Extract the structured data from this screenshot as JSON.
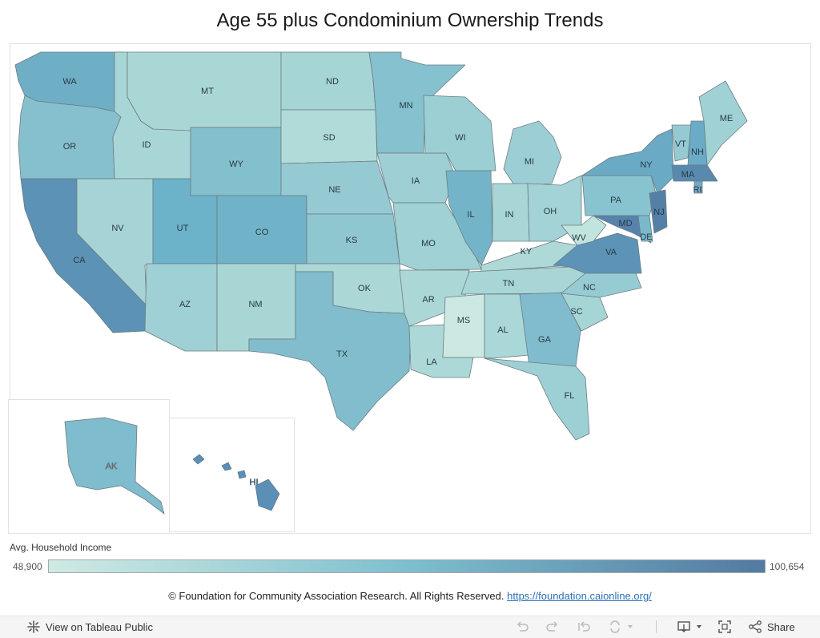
{
  "title": "Age 55 plus Condominium Ownership Trends",
  "legend": {
    "title": "Avg. Household Income",
    "min_label": "48,900",
    "max_label": "100,654",
    "color_low": "#cfeae3",
    "color_mid": "#7dbfcf",
    "color_high": "#537aa1"
  },
  "states": [
    {
      "abbr": "WA",
      "color": "#6eafc6"
    },
    {
      "abbr": "OR",
      "color": "#86c0cf"
    },
    {
      "abbr": "CA",
      "color": "#5b92b5"
    },
    {
      "abbr": "ID",
      "color": "#a8d6d6"
    },
    {
      "abbr": "NV",
      "color": "#a6d4d6"
    },
    {
      "abbr": "MT",
      "color": "#a9d7d6"
    },
    {
      "abbr": "WY",
      "color": "#83c0ce"
    },
    {
      "abbr": "UT",
      "color": "#6cb2c9"
    },
    {
      "abbr": "AZ",
      "color": "#9ed0d5"
    },
    {
      "abbr": "CO",
      "color": "#70b3c8"
    },
    {
      "abbr": "NM",
      "color": "#a7d6d5"
    },
    {
      "abbr": "ND",
      "color": "#a6d5d5"
    },
    {
      "abbr": "SD",
      "color": "#b0dbd8"
    },
    {
      "abbr": "NE",
      "color": "#96cad3"
    },
    {
      "abbr": "KS",
      "color": "#8fc7d1"
    },
    {
      "abbr": "OK",
      "color": "#abd7d7"
    },
    {
      "abbr": "TX",
      "color": "#81bdcd"
    },
    {
      "abbr": "MN",
      "color": "#85c1cf"
    },
    {
      "abbr": "IA",
      "color": "#9dcfd5"
    },
    {
      "abbr": "MO",
      "color": "#9fd1d5"
    },
    {
      "abbr": "AR",
      "color": "#abd7d7"
    },
    {
      "abbr": "LA",
      "color": "#acd9d7"
    },
    {
      "abbr": "WI",
      "color": "#9ccfd4"
    },
    {
      "abbr": "IL",
      "color": "#73b4c9"
    },
    {
      "abbr": "MI",
      "color": "#9ccfd5"
    },
    {
      "abbr": "IN",
      "color": "#a8d6d6"
    },
    {
      "abbr": "OH",
      "color": "#a3d3d6"
    },
    {
      "abbr": "KY",
      "color": "#aed9d7"
    },
    {
      "abbr": "TN",
      "color": "#a8d6d6"
    },
    {
      "abbr": "MS",
      "color": "#cbe9e2"
    },
    {
      "abbr": "AL",
      "color": "#aad7d7"
    },
    {
      "abbr": "GA",
      "color": "#80bccd"
    },
    {
      "abbr": "FL",
      "color": "#9dd0d5"
    },
    {
      "abbr": "SC",
      "color": "#a6d5d6"
    },
    {
      "abbr": "NC",
      "color": "#96cbd3"
    },
    {
      "abbr": "VA",
      "color": "#5c93b6"
    },
    {
      "abbr": "WV",
      "color": "#c2e4de"
    },
    {
      "abbr": "PA",
      "color": "#88c3d0"
    },
    {
      "abbr": "NY",
      "color": "#6aaac5"
    },
    {
      "abbr": "MD",
      "color": "#5683ab"
    },
    {
      "abbr": "DE",
      "color": "#7ab9cc"
    },
    {
      "abbr": "NJ",
      "color": "#5480a8"
    },
    {
      "abbr": "VT",
      "color": "#95cad2"
    },
    {
      "abbr": "NH",
      "color": "#6aabc5"
    },
    {
      "abbr": "ME",
      "color": "#9fd1d5"
    },
    {
      "abbr": "MA",
      "color": "#5889ae"
    },
    {
      "abbr": "RI",
      "color": "#6fa9c4"
    },
    {
      "abbr": "AK",
      "color": "#7fbccd"
    },
    {
      "abbr": "HI",
      "color": "#5b8fb5"
    }
  ],
  "footer": {
    "text": "© Foundation for Community Association Research.  All Rights Reserved.",
    "link": "https://foundation.caionline.org/"
  },
  "toolbar": {
    "view_label": "View on Tableau Public",
    "share_label": "Share"
  }
}
